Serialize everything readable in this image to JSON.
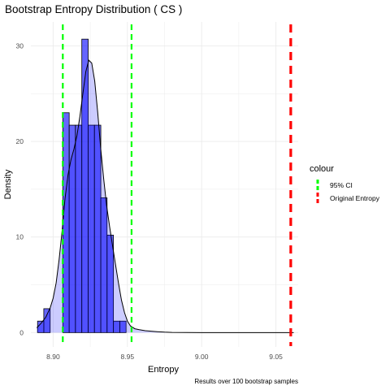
{
  "chart_data": {
    "type": "histogram",
    "title": "Bootstrap Entropy Distribution ( CS )",
    "xlabel": "Entropy",
    "ylabel": "Density",
    "caption": "Results over 100 bootstrap samples",
    "xlim": [
      8.885,
      9.065
    ],
    "ylim": [
      -1.5,
      32.5
    ],
    "x_ticks": [
      8.9,
      8.95,
      9.0,
      9.05
    ],
    "x_tick_labels": [
      "8.90",
      "8.95",
      "9.00",
      "9.05"
    ],
    "y_ticks": [
      0,
      10,
      20,
      30
    ],
    "y_tick_labels": [
      "0",
      "10",
      "20",
      "30"
    ],
    "grid": true,
    "bin_width": 0.00426,
    "bins": [
      {
        "x0": 8.8895,
        "x1": 8.8937,
        "density": 1.2
      },
      {
        "x0": 8.8937,
        "x1": 8.898,
        "density": 2.5
      },
      {
        "x0": 8.898,
        "x1": 8.9023,
        "density": 0
      },
      {
        "x0": 8.9023,
        "x1": 8.9065,
        "density": 0
      },
      {
        "x0": 8.9065,
        "x1": 8.9108,
        "density": 23.0
      },
      {
        "x0": 8.9108,
        "x1": 8.915,
        "density": 21.7
      },
      {
        "x0": 8.915,
        "x1": 8.9193,
        "density": 21.7
      },
      {
        "x0": 8.9193,
        "x1": 8.9236,
        "density": 30.7
      },
      {
        "x0": 8.9236,
        "x1": 8.9278,
        "density": 21.7
      },
      {
        "x0": 8.9278,
        "x1": 8.9321,
        "density": 21.7
      },
      {
        "x0": 8.9321,
        "x1": 8.9363,
        "density": 14.1
      },
      {
        "x0": 8.9363,
        "x1": 8.9406,
        "density": 10.2
      },
      {
        "x0": 8.9406,
        "x1": 8.9449,
        "density": 1.2
      },
      {
        "x0": 8.9449,
        "x1": 8.9491,
        "density": 1.2
      }
    ],
    "density_curve": {
      "x": [
        8.889,
        8.892,
        8.895,
        8.898,
        8.9,
        8.902,
        8.904,
        8.906,
        8.908,
        8.91,
        8.912,
        8.914,
        8.916,
        8.918,
        8.92,
        8.922,
        8.924,
        8.926,
        8.928,
        8.93,
        8.932,
        8.934,
        8.936,
        8.938,
        8.94,
        8.942,
        8.944,
        8.946,
        8.948,
        8.95,
        8.952,
        8.955,
        8.958,
        8.962,
        8.966,
        8.97,
        8.975,
        8.98,
        9.0,
        9.03,
        9.062
      ],
      "y": [
        0.5,
        1.0,
        1.6,
        2.6,
        3.6,
        5.2,
        7.6,
        10.6,
        14.0,
        16.5,
        18.1,
        19.2,
        20.6,
        22.6,
        25.0,
        27.3,
        28.5,
        28.2,
        26.3,
        23.0,
        19.3,
        16.1,
        13.3,
        11.1,
        9.1,
        7.1,
        5.2,
        3.4,
        2.1,
        1.2,
        0.7,
        0.4,
        0.3,
        0.2,
        0.15,
        0.1,
        0.05,
        0.02,
        0.0,
        0.0,
        0.0
      ]
    },
    "reference_lines": [
      {
        "name": "95% CI",
        "x": 8.9065,
        "color": "#00ff00"
      },
      {
        "name": "95% CI",
        "x": 8.9528,
        "color": "#00ff00"
      },
      {
        "name": "Original Entropy",
        "x": 9.06,
        "color": "#ff0000"
      }
    ],
    "legend": {
      "title": "colour",
      "placement": "right",
      "entries": [
        {
          "label": "95% CI",
          "color": "#00ff00"
        },
        {
          "label": "Original Entropy",
          "color": "#ff0000"
        }
      ]
    },
    "colors": {
      "bar_fill": "#0000ff",
      "bar_fill_opacity": 0.6,
      "bar_stroke": "#000000",
      "curve_fill": "#0000ff",
      "curve_fill_opacity": 0.2,
      "curve_stroke": "#000000",
      "grid": "#ebebeb"
    }
  }
}
